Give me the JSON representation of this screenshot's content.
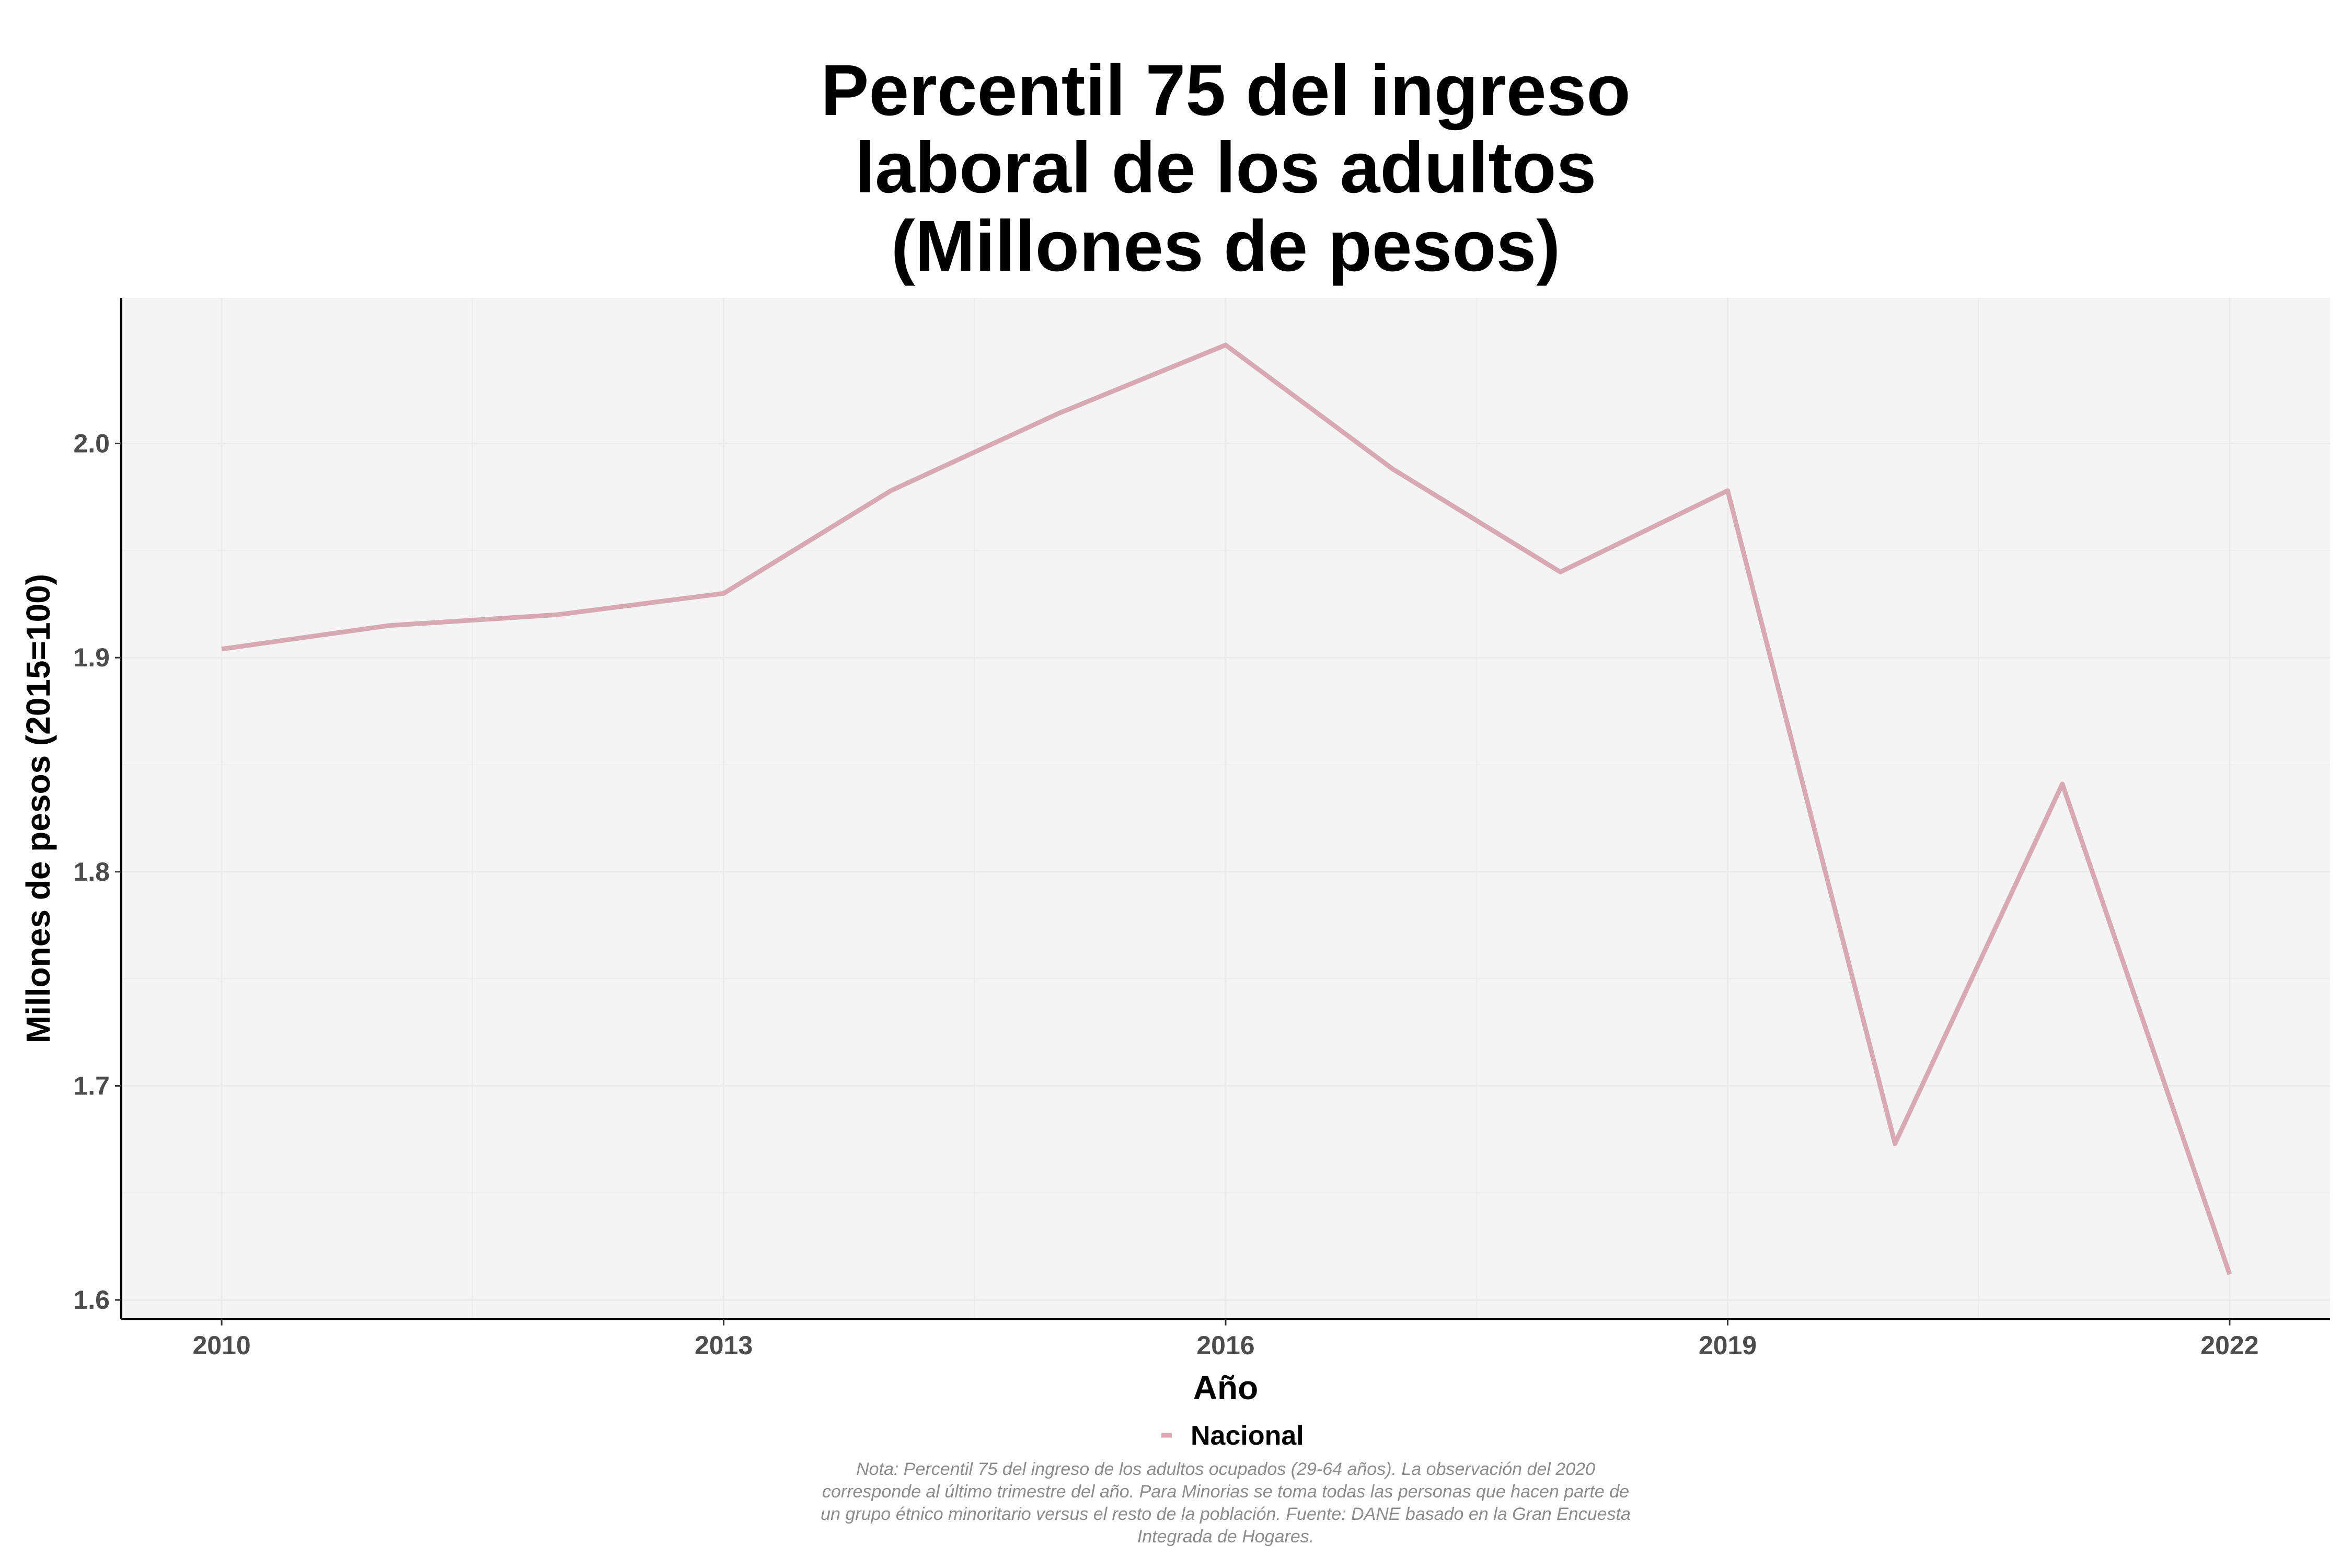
{
  "chart_data": {
    "type": "line",
    "title_lines": [
      "Percentil 75 del ingreso",
      "laboral de los adultos",
      "(Millones de pesos)"
    ],
    "xlabel": "Año",
    "ylabel": "Millones de pesos (2015=100)",
    "x": [
      2010,
      2011,
      2012,
      2013,
      2014,
      2015,
      2016,
      2017,
      2018,
      2019,
      2020,
      2021,
      2022
    ],
    "series": [
      {
        "name": "Nacional",
        "color": "#d8a9b5",
        "values": [
          1.904,
          1.915,
          1.92,
          1.93,
          1.978,
          2.014,
          2.046,
          1.988,
          1.94,
          1.978,
          1.673,
          1.841,
          1.612
        ]
      }
    ],
    "xlim": [
      2009.4,
      2022.6
    ],
    "ylim": [
      1.591,
      2.068
    ],
    "x_ticks": [
      2010,
      2013,
      2016,
      2019,
      2022
    ],
    "x_tick_labels": [
      "2010",
      "2013",
      "2016",
      "2019",
      "2022"
    ],
    "y_ticks": [
      1.6,
      1.7,
      1.8,
      1.9,
      2.0
    ],
    "y_tick_labels": [
      "1.6",
      "1.7",
      "1.8",
      "1.9",
      "2.0"
    ],
    "grid": true,
    "panel_color": "#f4f4f4",
    "grid_color": "#ebebeb",
    "legend_position": "bottom",
    "note_lines": [
      "Nota: Percentil 75 del ingreso de los adultos ocupados (29-64 años). La observación del 2020",
      "corresponde al último trimestre del año. Para Minorias se toma todas las personas que hacen parte de",
      "un grupo étnico minoritario versus el resto de la población. Fuente: DANE basado en la Gran Encuesta",
      "Integrada de Hogares."
    ]
  }
}
